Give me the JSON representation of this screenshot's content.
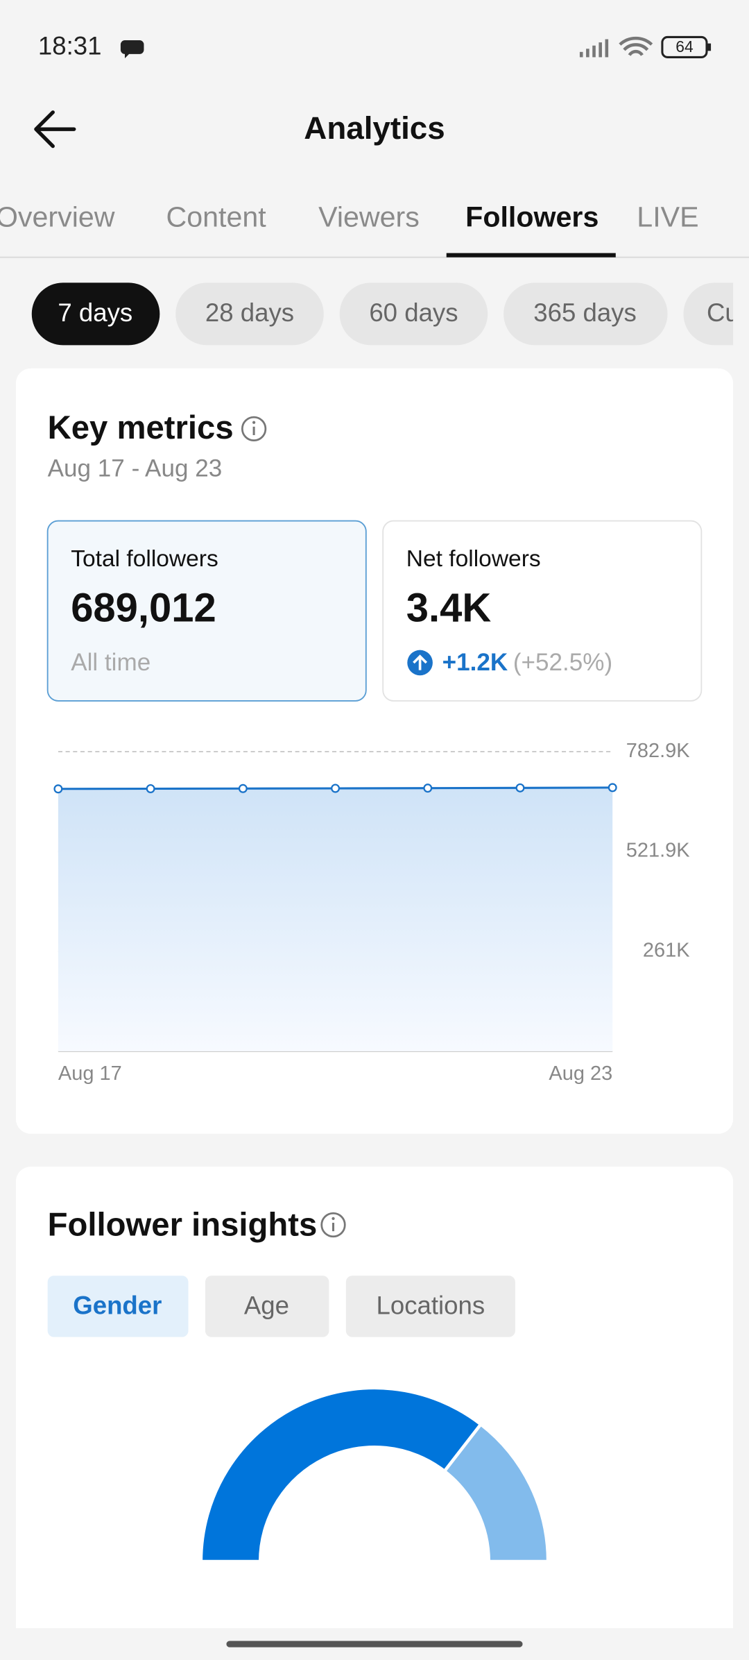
{
  "status_bar": {
    "time": "18:31",
    "battery": "64"
  },
  "header": {
    "title": "Analytics"
  },
  "tabs": [
    "Overview",
    "Content",
    "Viewers",
    "Followers",
    "LIVE"
  ],
  "periods": [
    "7 days",
    "28 days",
    "60 days",
    "365 days",
    "Cu"
  ],
  "key_metrics": {
    "title": "Key metrics",
    "date_range": "Aug 17 - Aug 23",
    "total": {
      "label": "Total followers",
      "value": "689,012",
      "note": "All time"
    },
    "net": {
      "label": "Net followers",
      "value": "3.4K",
      "change": "+1.2K",
      "change_pct": "(+52.5%)"
    }
  },
  "chart_data": [
    {
      "type": "area",
      "categories": [
        "Aug 17",
        null,
        null,
        null,
        null,
        null,
        "Aug 23"
      ],
      "values": [
        685600,
        686100,
        686500,
        687000,
        687600,
        688200,
        689012
      ],
      "color": "#1a73c9",
      "ylim": [
        0,
        782900
      ],
      "yticks": [
        {
          "value": 261000,
          "label": "261K"
        },
        {
          "value": 521900,
          "label": "521.9K"
        },
        {
          "value": 782900,
          "label": "782.9K"
        }
      ],
      "grid": true
    },
    {
      "type": "gauge",
      "values": [
        71,
        29
      ],
      "colors": [
        "#0075db",
        "#82bbec"
      ]
    }
  ],
  "insights": {
    "title": "Follower insights",
    "filters": [
      "Gender",
      "Age",
      "Locations"
    ]
  }
}
